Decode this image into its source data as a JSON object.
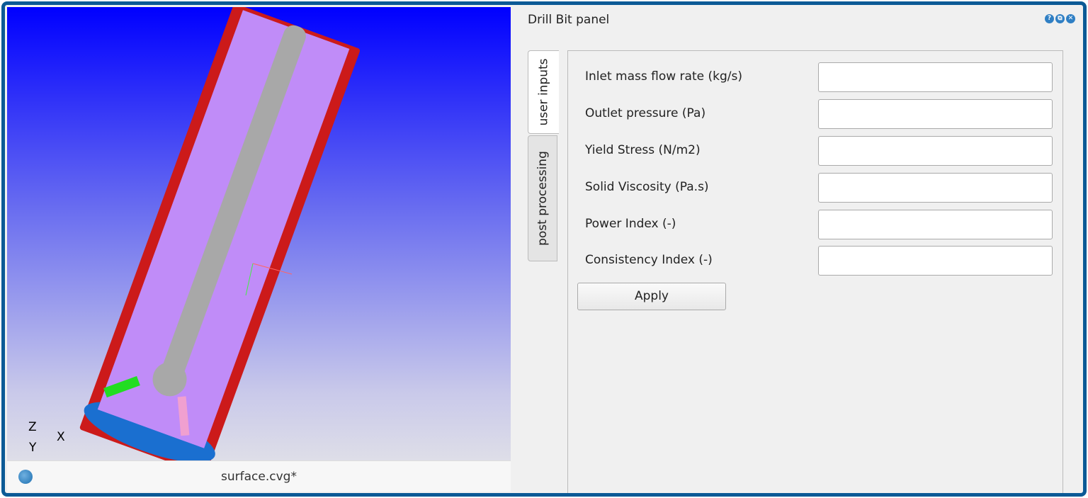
{
  "viewport": {
    "axes": {
      "z": "Z",
      "x": "X",
      "y": "Y"
    },
    "filename": "surface.cvg*"
  },
  "panel": {
    "title": "Drill Bit panel",
    "buttons": [
      {
        "icon": "help-icon",
        "glyph": "?"
      },
      {
        "icon": "float-icon",
        "glyph": "⧉"
      },
      {
        "icon": "close-icon",
        "glyph": "✕"
      }
    ],
    "tabs": [
      {
        "label": "user inputs",
        "active": true
      },
      {
        "label": "post processing",
        "active": false
      }
    ],
    "fields": [
      {
        "label": "Inlet mass flow rate (kg/s)",
        "value": ""
      },
      {
        "label": "Outlet pressure (Pa)",
        "value": ""
      },
      {
        "label": "Yield Stress (N/m2)",
        "value": ""
      },
      {
        "label": "Solid Viscosity (Pa.s)",
        "value": ""
      },
      {
        "label": "Power Index (-)",
        "value": ""
      },
      {
        "label": "Consistency Index (-)",
        "value": ""
      }
    ],
    "apply_label": "Apply"
  },
  "colors": {
    "frame": "#0b5a96",
    "outer_casing": "#cc1a1a",
    "inner": "#c08cf8",
    "shaft": "#a8a8a8",
    "bottom": "#1a6fd0"
  }
}
